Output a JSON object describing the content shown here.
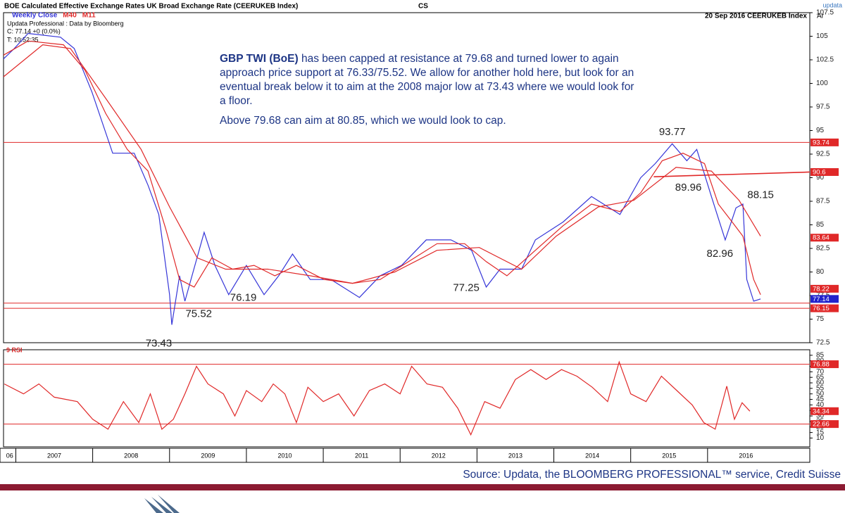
{
  "header": {
    "source_title": "BOE Calculated Effective Exchange Rates UK Broad Exchange Rate  (CEERUKEB Index)",
    "broker": "CS",
    "vendor": "updata",
    "date_ticker": "20 Sep 2016  CEERUKEB Index",
    "corner": "Ar",
    "info1": "Updata Professional : Data by Bloomberg",
    "info2": "C: 77.14 +0 (0.0%)",
    "info3": "T: 10:52:35"
  },
  "commentary": {
    "bold": "GBP TWI (BoE)",
    "text1": " has been capped at resistance at 79.68 and turned lower to again approach price support at 76.33/75.52.  We allow for another hold here, but look for an eventual break below it to aim at the 2008 major low at 73.43 where we would look for a floor.",
    "text2": "Above 79.68 can aim at 80.85, which we would look to cap."
  },
  "source": "Source: Updata, the BLOOMBERG PROFESSIONAL™ service, Credit Suisse",
  "chart_data": [
    {
      "type": "line",
      "xlim": [
        2006.84,
        2017.33
      ],
      "xticks": [
        {
          "value": 2006,
          "label": "06"
        },
        2007,
        2008,
        2009,
        2010,
        2011,
        2012,
        2013,
        2014,
        2015,
        2016
      ],
      "ylim": [
        72.5,
        107.5
      ],
      "yticks": [
        72.5,
        75,
        77.5,
        80,
        82.5,
        85,
        87.5,
        90,
        92.5,
        95,
        97.5,
        100,
        102.5,
        105,
        107.5
      ],
      "grid": false,
      "series": [
        {
          "name": "Weekly Close",
          "color": "#3636d8",
          "x": [
            2006.84,
            2006.98,
            2007.16,
            2007.58,
            2007.76,
            2007.99,
            2008.26,
            2008.54,
            2008.72,
            2008.86,
            2009.0,
            2009.03,
            2009.13,
            2009.2,
            2009.45,
            2009.59,
            2009.77,
            2010.0,
            2010.23,
            2010.42,
            2010.6,
            2010.83,
            2011.1,
            2011.47,
            2011.74,
            2012.02,
            2012.34,
            2012.66,
            2012.93,
            2013.12,
            2013.3,
            2013.58,
            2013.76,
            2014.12,
            2014.49,
            2014.86,
            2015.13,
            2015.32,
            2015.54,
            2015.73,
            2015.86,
            2016.05,
            2016.23,
            2016.37,
            2016.46,
            2016.51,
            2016.6,
            2016.69
          ],
          "values": [
            102.6,
            103.7,
            105.3,
            104.9,
            103.7,
            99.1,
            92.6,
            92.6,
            89.2,
            86.1,
            77.6,
            74.4,
            79.6,
            76.9,
            84.2,
            80.7,
            77.6,
            80.7,
            77.6,
            79.6,
            81.9,
            79.2,
            79.2,
            77.3,
            79.6,
            80.7,
            83.4,
            83.4,
            82.3,
            78.4,
            80.3,
            80.3,
            83.4,
            85.3,
            88.0,
            86.1,
            90.0,
            91.5,
            93.6,
            91.8,
            93.0,
            88.0,
            83.4,
            86.8,
            87.2,
            79.2,
            76.9,
            77.14
          ]
        },
        {
          "name": "M40",
          "color": "#e02828",
          "x": [
            2006.84,
            2007.35,
            2007.71,
            2008.17,
            2008.63,
            2009.0,
            2009.36,
            2009.73,
            2010.28,
            2010.83,
            2011.38,
            2011.93,
            2012.48,
            2013.03,
            2013.58,
            2014.03,
            2014.58,
            2015.04,
            2015.59,
            2016.05,
            2016.41,
            2016.69
          ],
          "values": [
            100.7,
            104.1,
            103.7,
            98.4,
            93.0,
            86.9,
            81.5,
            80.3,
            80.3,
            79.6,
            78.8,
            80.0,
            82.3,
            82.6,
            80.3,
            83.8,
            86.9,
            87.6,
            91.1,
            90.7,
            87.6,
            83.8
          ]
        },
        {
          "name": "M11",
          "color": "#e02828",
          "x": [
            2006.84,
            2007.16,
            2007.62,
            2007.9,
            2008.17,
            2008.45,
            2008.72,
            2008.95,
            2009.13,
            2009.32,
            2009.55,
            2009.82,
            2010.1,
            2010.37,
            2010.65,
            2011.01,
            2011.38,
            2011.74,
            2012.11,
            2012.48,
            2012.84,
            2013.12,
            2013.39,
            2013.76,
            2014.12,
            2014.49,
            2014.86,
            2015.13,
            2015.41,
            2015.68,
            2015.96,
            2016.14,
            2016.32,
            2016.46,
            2016.6,
            2016.69
          ],
          "values": [
            103.0,
            104.5,
            104.1,
            101.4,
            96.8,
            93.0,
            90.7,
            84.6,
            79.2,
            78.4,
            81.5,
            80.3,
            80.7,
            79.6,
            80.7,
            79.2,
            78.8,
            79.2,
            81.1,
            83.0,
            83.0,
            81.1,
            79.6,
            82.3,
            84.9,
            87.2,
            86.4,
            88.4,
            91.8,
            92.6,
            91.5,
            87.2,
            85.3,
            83.8,
            79.2,
            77.6
          ]
        }
      ],
      "hlines": [
        93.74,
        76.7,
        76.15
      ],
      "hline_color": "#e02828",
      "trendline": {
        "color": "#e02828",
        "x": [
          2015.3,
          2017.33
        ],
        "values": [
          90.1,
          90.6
        ]
      },
      "markers": [
        {
          "value": 93.74,
          "color": "#e02828"
        },
        {
          "value": 90.6,
          "color": "#e02828"
        },
        {
          "value": 83.64,
          "color": "#e02828"
        },
        {
          "value": 78.22,
          "color": "#e02828"
        },
        {
          "value": 77.14,
          "color": "#2222cc"
        },
        {
          "value": 76.15,
          "color": "#e02828"
        }
      ],
      "annotations": [
        {
          "label": "93.77",
          "x": 2015.54,
          "y": 93.77,
          "position": "above"
        },
        {
          "label": "89.96",
          "x": 2015.75,
          "y": 89.96,
          "position": "below"
        },
        {
          "label": "88.15",
          "x": 2016.69,
          "y": 88.15,
          "position": "center"
        },
        {
          "label": "82.96",
          "x": 2016.16,
          "y": 82.96,
          "position": "below"
        },
        {
          "label": "77.25",
          "x": 2012.86,
          "y": 77.25,
          "position": "above"
        },
        {
          "label": "76.19",
          "x": 2009.96,
          "y": 76.19,
          "position": "above"
        },
        {
          "label": "75.52",
          "x": 2009.38,
          "y": 75.52,
          "position": "center"
        },
        {
          "label": "73.43",
          "x": 2008.86,
          "y": 73.43,
          "position": "below"
        }
      ]
    },
    {
      "type": "line",
      "title": "9 RSI",
      "xlim": [
        2006.84,
        2017.33
      ],
      "ylim": [
        2,
        90
      ],
      "yticks": [
        10,
        15,
        20,
        25,
        30,
        35,
        40,
        45,
        50,
        55,
        60,
        65,
        70,
        75,
        80,
        85
      ],
      "grid": false,
      "series": [
        {
          "color": "#e02828",
          "x": [
            2006.85,
            2007.1,
            2007.3,
            2007.5,
            2007.8,
            2008.0,
            2008.2,
            2008.4,
            2008.6,
            2008.75,
            2008.9,
            2009.05,
            2009.2,
            2009.35,
            2009.5,
            2009.7,
            2009.85,
            2010.0,
            2010.2,
            2010.35,
            2010.5,
            2010.65,
            2010.8,
            2011.0,
            2011.2,
            2011.4,
            2011.6,
            2011.8,
            2012.0,
            2012.15,
            2012.35,
            2012.55,
            2012.75,
            2012.92,
            2013.1,
            2013.3,
            2013.5,
            2013.7,
            2013.9,
            2014.1,
            2014.3,
            2014.5,
            2014.7,
            2014.85,
            2015.0,
            2015.2,
            2015.4,
            2015.6,
            2015.8,
            2015.95,
            2016.1,
            2016.25,
            2016.35,
            2016.45,
            2016.55
          ],
          "values": [
            59,
            50,
            59,
            47,
            43,
            27,
            18,
            43,
            24,
            50,
            18,
            27,
            50,
            75,
            59,
            50,
            30,
            53,
            43,
            59,
            50,
            24,
            56,
            43,
            50,
            30,
            53,
            59,
            50,
            75,
            59,
            56,
            37,
            13,
            43,
            37,
            63,
            72,
            63,
            72,
            66,
            56,
            43,
            79,
            50,
            43,
            66,
            53,
            40,
            24,
            18,
            57,
            27,
            42,
            34.34
          ]
        }
      ],
      "hlines": [
        76.88,
        22.66
      ],
      "hline_color": "#e02828",
      "markers": [
        {
          "value": 76.88,
          "color": "#e02828"
        },
        {
          "value": 34.34,
          "color": "#e02828"
        },
        {
          "value": 22.66,
          "color": "#e02828"
        }
      ]
    }
  ]
}
